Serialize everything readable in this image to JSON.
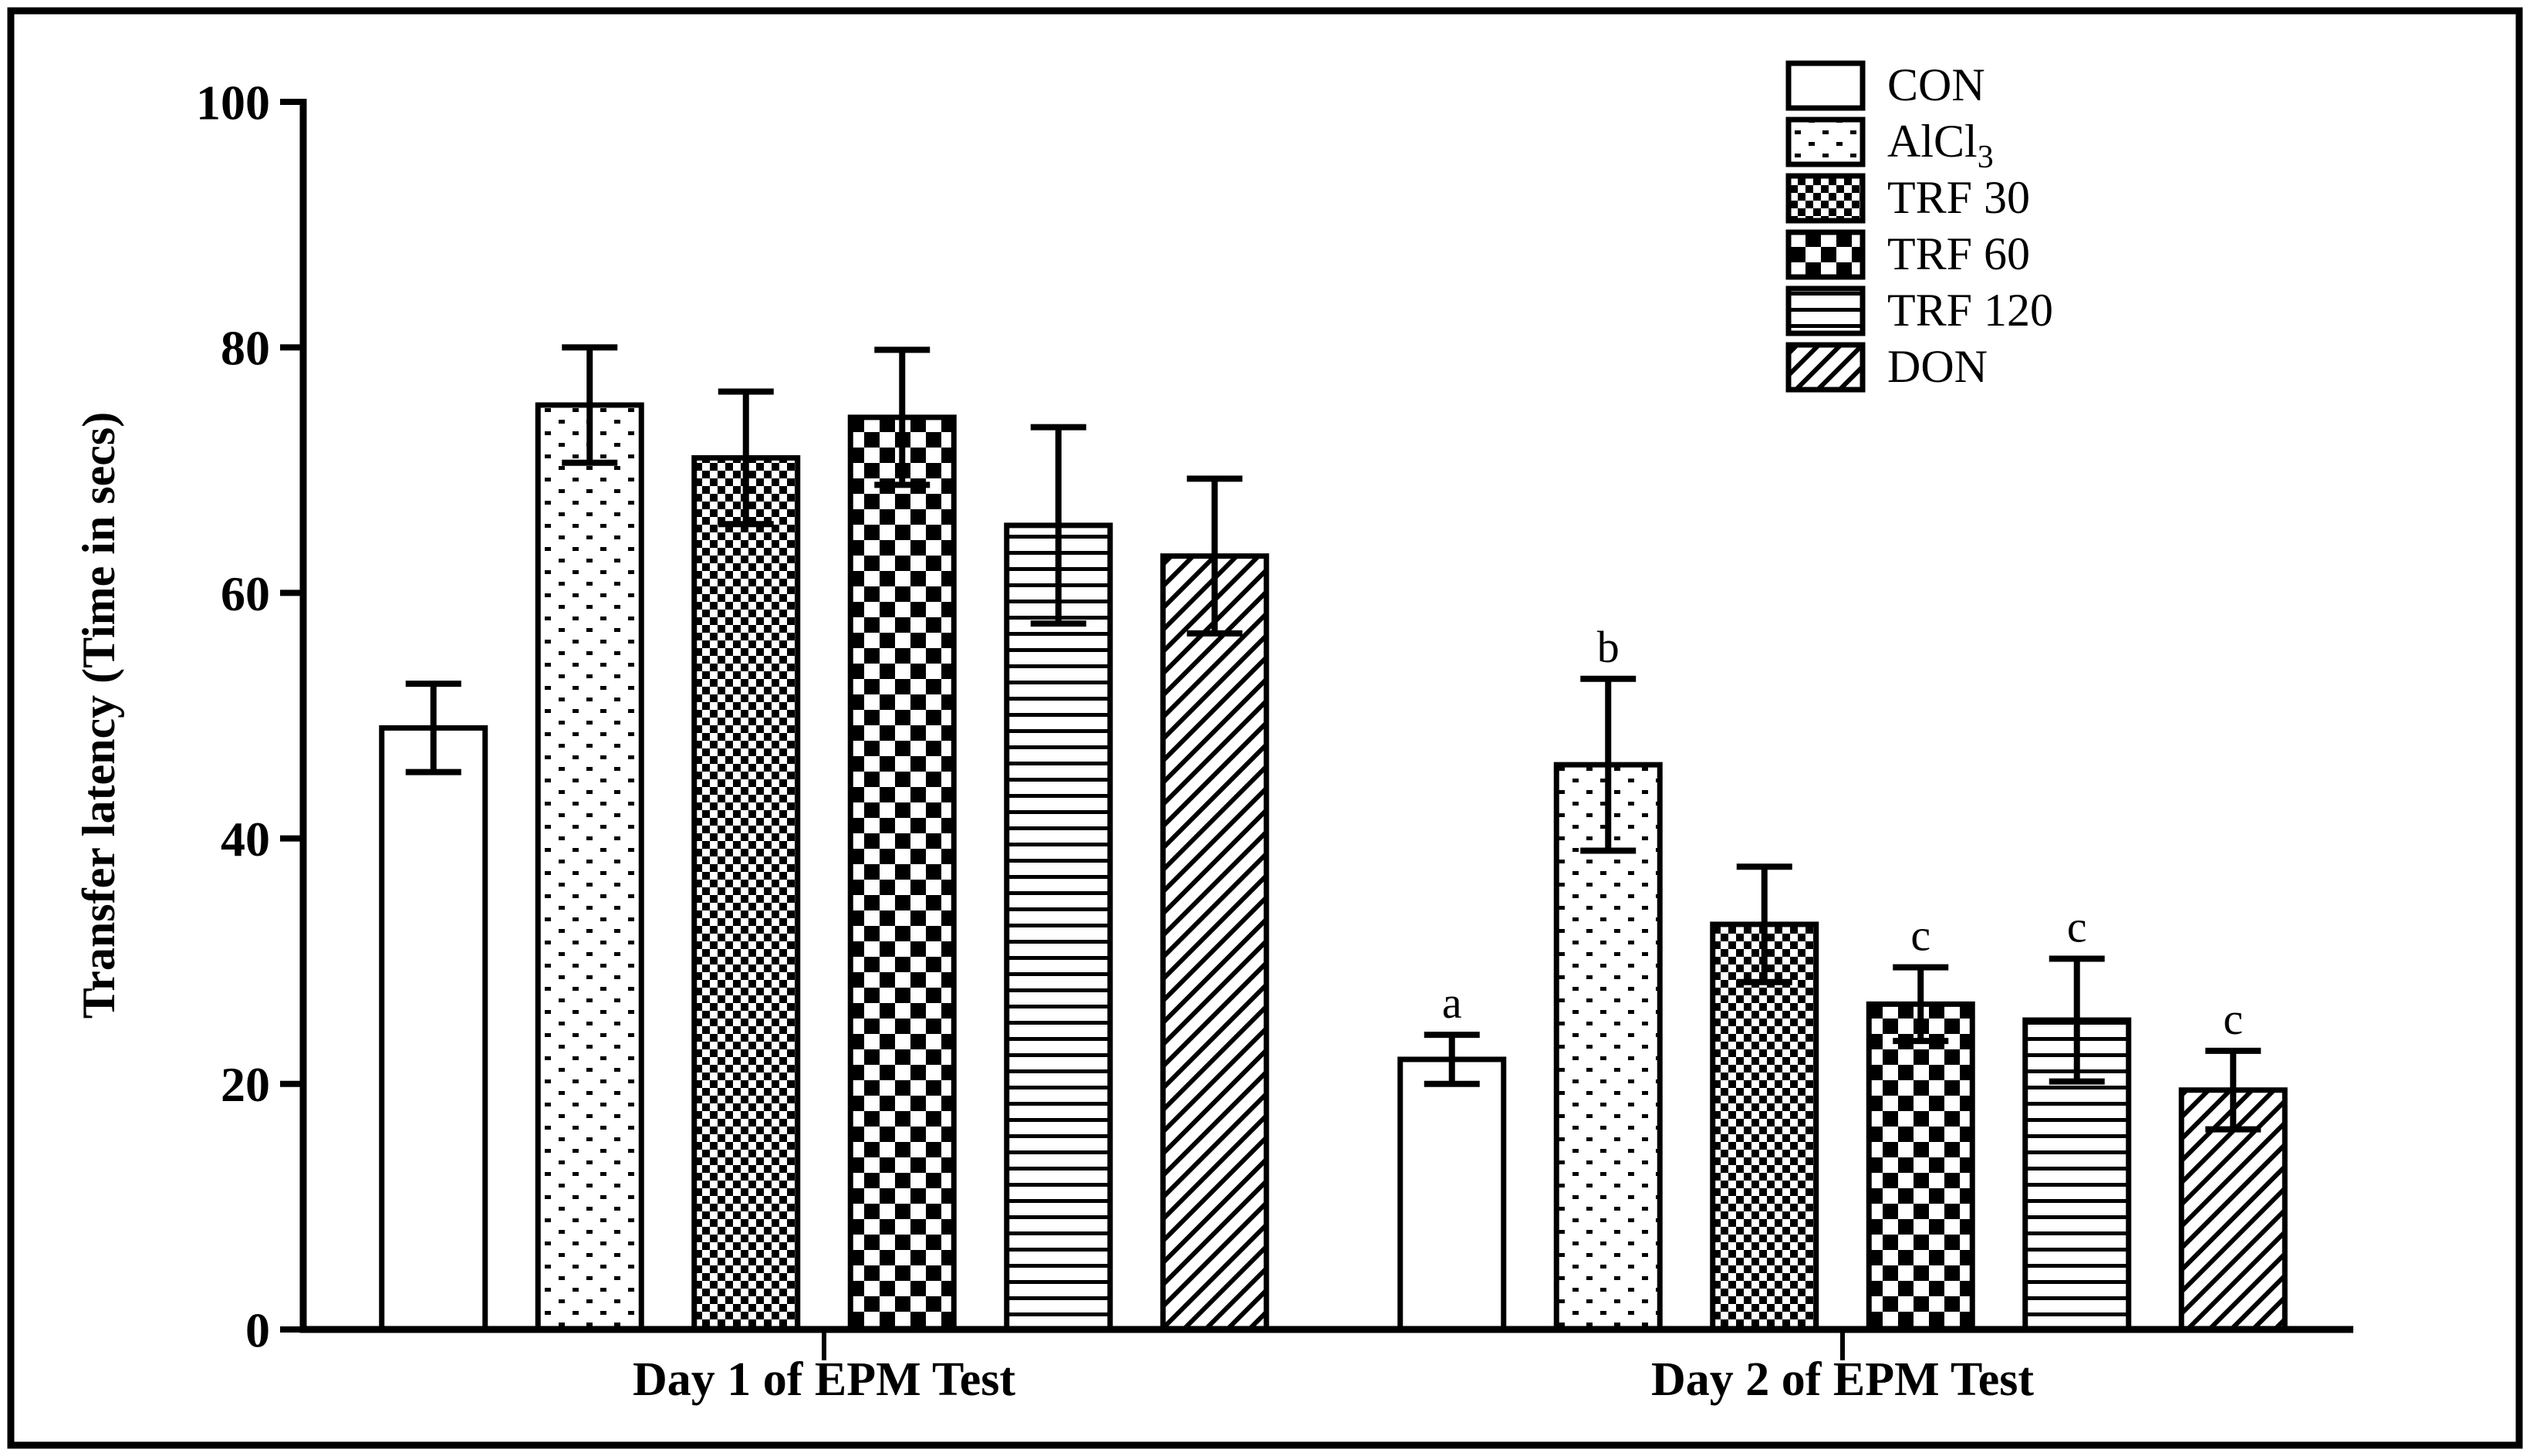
{
  "chart_data": {
    "type": "bar",
    "title": "",
    "xlabel": "",
    "ylabel": "Transfer latency  (Time in secs)",
    "ylim": [
      0,
      100
    ],
    "yticks": [
      "0",
      "20",
      "40",
      "60",
      "80",
      "100"
    ],
    "grid": false,
    "legend_position": "top-right",
    "categories": [
      "Day 1 of EPM Test",
      "Day 2 of EPM Test"
    ],
    "series": [
      {
        "name": "CON",
        "base": "CON",
        "subscript": "",
        "pattern": "plain",
        "values": [
          49.0,
          22.0
        ],
        "errors": [
          3.6,
          2.0
        ],
        "annotations": [
          "",
          "a"
        ]
      },
      {
        "name": "AlCl3",
        "base": "AlCl",
        "subscript": "3",
        "pattern": "dots",
        "values": [
          75.3,
          46.0
        ],
        "errors": [
          4.7,
          7.0
        ],
        "annotations": [
          "",
          "b"
        ]
      },
      {
        "name": "TRF 30",
        "base": "TRF 30",
        "subscript": "",
        "pattern": "fine-checker",
        "values": [
          71.0,
          33.0
        ],
        "errors": [
          5.4,
          4.7
        ],
        "annotations": [
          "",
          ""
        ]
      },
      {
        "name": "TRF 60",
        "base": "TRF 60",
        "subscript": "",
        "pattern": "coarse-checker",
        "values": [
          74.3,
          26.5
        ],
        "errors": [
          5.5,
          3.0
        ],
        "annotations": [
          "",
          "c"
        ]
      },
      {
        "name": "TRF 120",
        "base": "TRF 120",
        "subscript": "",
        "pattern": "h-lines",
        "values": [
          65.5,
          25.2
        ],
        "errors": [
          8.0,
          5.0
        ],
        "annotations": [
          "",
          "c"
        ]
      },
      {
        "name": "DON",
        "base": "DON",
        "subscript": "",
        "pattern": "diagonal",
        "values": [
          63.0,
          19.5
        ],
        "errors": [
          6.3,
          3.2
        ],
        "annotations": [
          "",
          "c"
        ]
      }
    ],
    "colors": {
      "foreground": "#000000",
      "background": "#ffffff"
    }
  }
}
